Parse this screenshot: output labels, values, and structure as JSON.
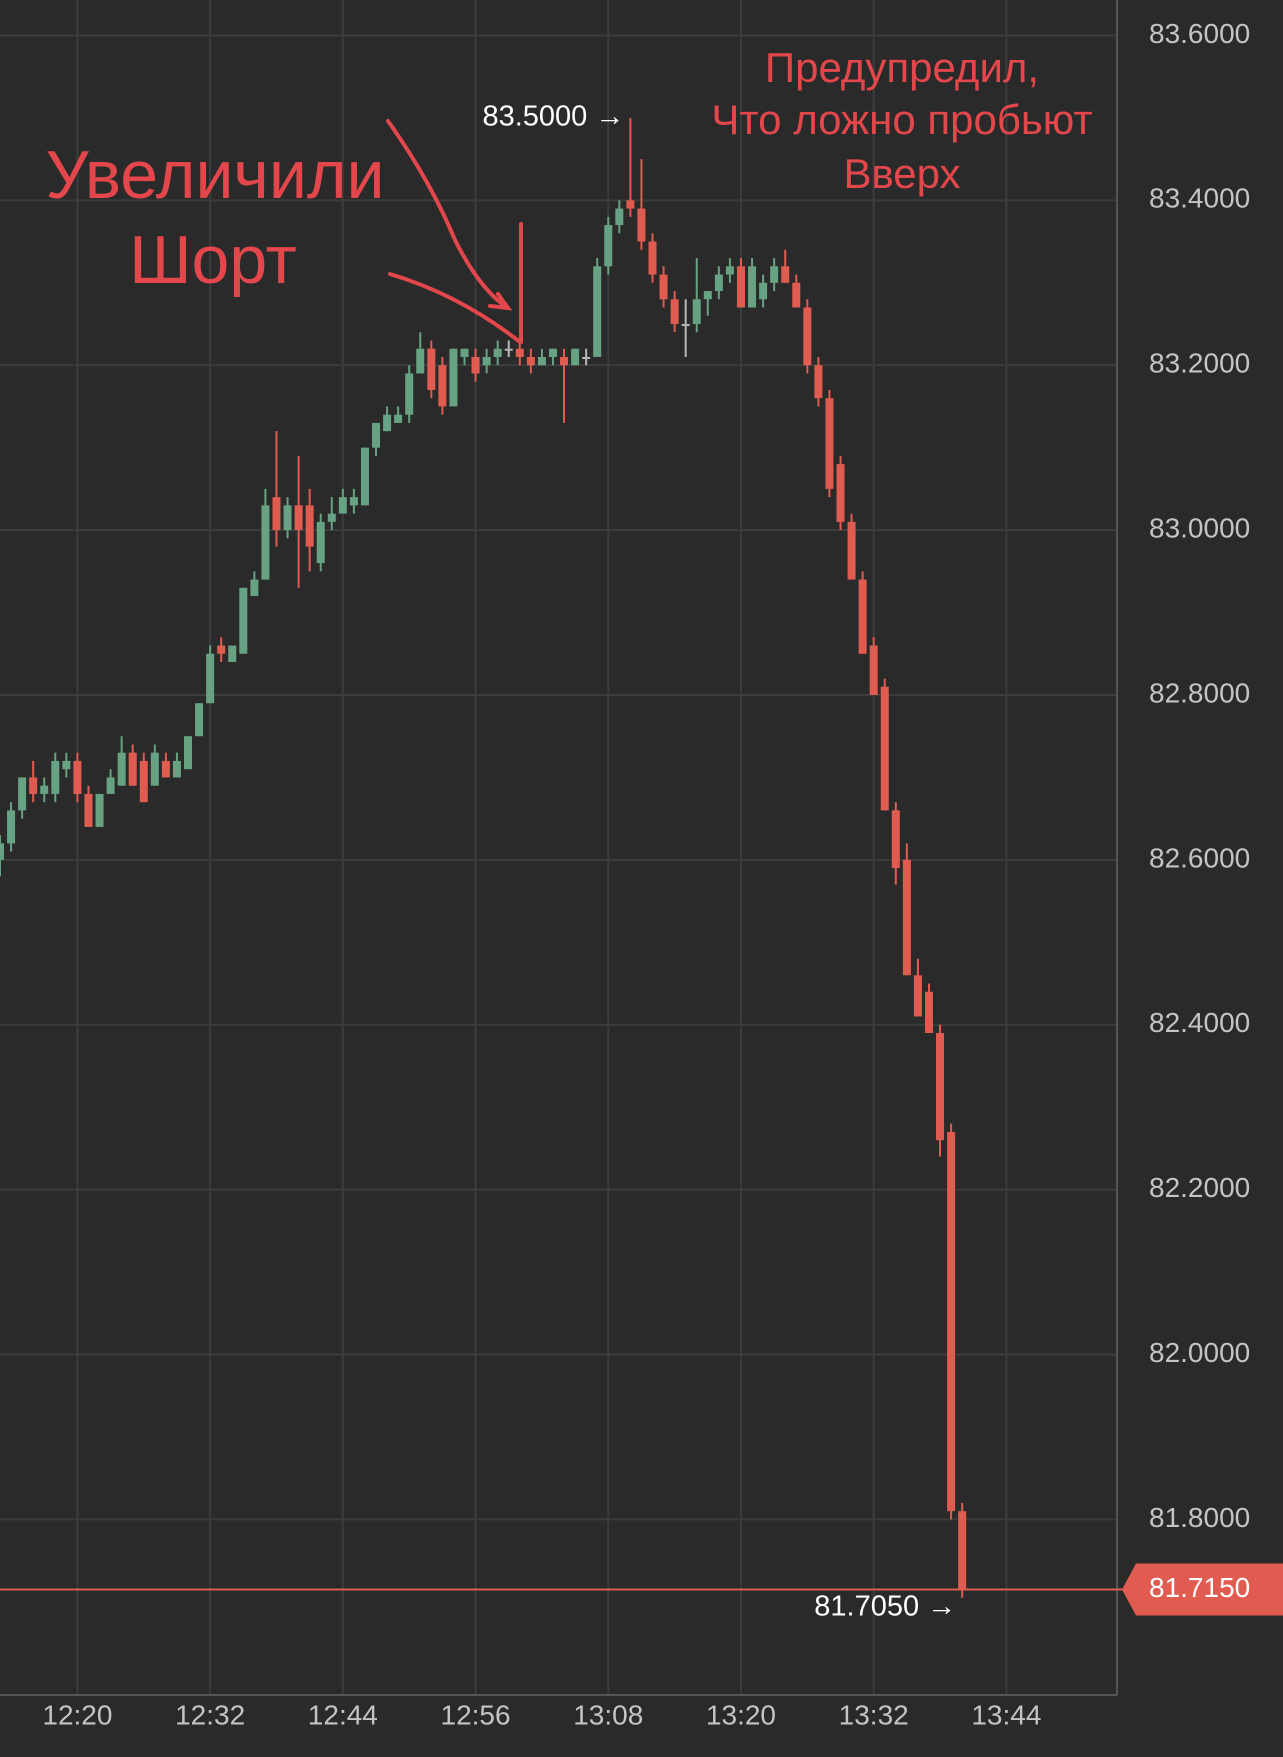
{
  "chart_data": {
    "type": "candlestick",
    "xlim": [
      "12:13",
      "13:54"
    ],
    "xticks": [
      "12:20",
      "12:32",
      "12:44",
      "12:56",
      "13:08",
      "13:20",
      "13:32",
      "13:44"
    ],
    "ylim": [
      81.587,
      83.643
    ],
    "yticks": [
      {
        "value": 81.8,
        "label": "81.8000"
      },
      {
        "value": 82.0,
        "label": "82.0000"
      },
      {
        "value": 82.2,
        "label": "82.2000"
      },
      {
        "value": 82.4,
        "label": "82.4000"
      },
      {
        "value": 82.6,
        "label": "82.6000"
      },
      {
        "value": 82.8,
        "label": "82.8000"
      },
      {
        "value": 83.0,
        "label": "83.0000"
      },
      {
        "value": 83.2,
        "label": "83.2000"
      },
      {
        "value": 83.4,
        "label": "83.4000"
      },
      {
        "value": 83.6,
        "label": "83.6000"
      }
    ],
    "grid": true,
    "up_color": "#67a382",
    "down_color": "#e05c50",
    "doji_color": "#b8b8b8",
    "x": [
      "12:13",
      "12:14",
      "12:15",
      "12:16",
      "12:17",
      "12:18",
      "12:19",
      "12:20",
      "12:21",
      "12:22",
      "12:23",
      "12:24",
      "12:25",
      "12:26",
      "12:27",
      "12:28",
      "12:29",
      "12:30",
      "12:31",
      "12:32",
      "12:33",
      "12:34",
      "12:35",
      "12:36",
      "12:37",
      "12:38",
      "12:39",
      "12:40",
      "12:41",
      "12:42",
      "12:43",
      "12:44",
      "12:45",
      "12:46",
      "12:47",
      "12:48",
      "12:49",
      "12:50",
      "12:51",
      "12:52",
      "12:53",
      "12:54",
      "12:55",
      "12:56",
      "12:57",
      "12:58",
      "12:59",
      "13:00",
      "13:01",
      "13:02",
      "13:03",
      "13:04",
      "13:05",
      "13:06",
      "13:07",
      "13:08",
      "13:09",
      "13:10",
      "13:11",
      "13:12",
      "13:13",
      "13:14",
      "13:15",
      "13:16",
      "13:17",
      "13:18",
      "13:19",
      "13:20",
      "13:21",
      "13:22",
      "13:23",
      "13:24",
      "13:25",
      "13:26",
      "13:27",
      "13:28",
      "13:29",
      "13:30",
      "13:31",
      "13:32",
      "13:33",
      "13:34",
      "13:35",
      "13:36",
      "13:37",
      "13:38",
      "13:39",
      "13:40"
    ],
    "ohlc": [
      [
        82.6,
        82.63,
        82.58,
        82.62
      ],
      [
        82.62,
        82.67,
        82.61,
        82.66
      ],
      [
        82.66,
        82.7,
        82.65,
        82.7
      ],
      [
        82.7,
        82.72,
        82.67,
        82.68
      ],
      [
        82.68,
        82.7,
        82.67,
        82.69
      ],
      [
        82.68,
        82.73,
        82.67,
        82.72
      ],
      [
        82.71,
        82.73,
        82.7,
        82.72
      ],
      [
        82.72,
        82.73,
        82.67,
        82.68
      ],
      [
        82.68,
        82.69,
        82.64,
        82.64
      ],
      [
        82.64,
        82.68,
        82.64,
        82.68
      ],
      [
        82.68,
        82.71,
        82.68,
        82.7
      ],
      [
        82.69,
        82.75,
        82.69,
        82.73
      ],
      [
        82.73,
        82.74,
        82.69,
        82.69
      ],
      [
        82.72,
        82.73,
        82.67,
        82.67
      ],
      [
        82.69,
        82.74,
        82.69,
        82.73
      ],
      [
        82.72,
        82.73,
        82.7,
        82.7
      ],
      [
        82.7,
        82.73,
        82.7,
        82.72
      ],
      [
        82.71,
        82.75,
        82.71,
        82.75
      ],
      [
        82.75,
        82.79,
        82.75,
        82.79
      ],
      [
        82.79,
        82.86,
        82.79,
        82.85
      ],
      [
        82.86,
        82.87,
        82.84,
        82.85
      ],
      [
        82.84,
        82.86,
        82.84,
        82.86
      ],
      [
        82.85,
        82.93,
        82.85,
        82.93
      ],
      [
        82.92,
        82.95,
        82.92,
        82.94
      ],
      [
        82.94,
        83.05,
        82.94,
        83.03
      ],
      [
        83.04,
        83.12,
        82.98,
        83.0
      ],
      [
        83.0,
        83.04,
        82.99,
        83.03
      ],
      [
        83.03,
        83.09,
        82.93,
        83.0
      ],
      [
        83.03,
        83.05,
        82.95,
        82.98
      ],
      [
        82.96,
        83.02,
        82.95,
        83.01
      ],
      [
        83.01,
        83.04,
        83.0,
        83.02
      ],
      [
        83.02,
        83.05,
        83.02,
        83.04
      ],
      [
        83.03,
        83.05,
        83.02,
        83.04
      ],
      [
        83.03,
        83.1,
        83.03,
        83.1
      ],
      [
        83.1,
        83.13,
        83.09,
        83.13
      ],
      [
        83.12,
        83.15,
        83.12,
        83.14
      ],
      [
        83.13,
        83.15,
        83.13,
        83.14
      ],
      [
        83.14,
        83.2,
        83.13,
        83.19
      ],
      [
        83.19,
        83.24,
        83.19,
        83.22
      ],
      [
        83.22,
        83.23,
        83.16,
        83.17
      ],
      [
        83.2,
        83.21,
        83.14,
        83.15
      ],
      [
        83.15,
        83.22,
        83.15,
        83.22
      ],
      [
        83.21,
        83.22,
        83.2,
        83.22
      ],
      [
        83.21,
        83.22,
        83.18,
        83.19
      ],
      [
        83.2,
        83.22,
        83.19,
        83.21
      ],
      [
        83.21,
        83.23,
        83.2,
        83.22
      ],
      [
        83.22,
        83.23,
        83.21,
        83.22
      ],
      [
        83.22,
        83.23,
        83.2,
        83.21
      ],
      [
        83.21,
        83.22,
        83.19,
        83.2
      ],
      [
        83.2,
        83.22,
        83.2,
        83.21
      ],
      [
        83.21,
        83.22,
        83.2,
        83.22
      ],
      [
        83.21,
        83.22,
        83.13,
        83.2
      ],
      [
        83.2,
        83.22,
        83.2,
        83.22
      ],
      [
        83.21,
        83.22,
        83.2,
        83.21
      ],
      [
        83.21,
        83.33,
        83.21,
        83.32
      ],
      [
        83.32,
        83.38,
        83.31,
        83.37
      ],
      [
        83.37,
        83.4,
        83.36,
        83.39
      ],
      [
        83.4,
        83.5,
        83.38,
        83.39
      ],
      [
        83.39,
        83.45,
        83.34,
        83.35
      ],
      [
        83.35,
        83.36,
        83.3,
        83.31
      ],
      [
        83.31,
        83.32,
        83.27,
        83.28
      ],
      [
        83.28,
        83.29,
        83.24,
        83.25
      ],
      [
        83.25,
        83.28,
        83.21,
        83.25
      ],
      [
        83.25,
        83.33,
        83.24,
        83.28
      ],
      [
        83.28,
        83.29,
        83.26,
        83.29
      ],
      [
        83.29,
        83.32,
        83.28,
        83.31
      ],
      [
        83.31,
        83.33,
        83.3,
        83.32
      ],
      [
        83.32,
        83.33,
        83.27,
        83.27
      ],
      [
        83.27,
        83.33,
        83.27,
        83.32
      ],
      [
        83.28,
        83.31,
        83.27,
        83.3
      ],
      [
        83.3,
        83.33,
        83.29,
        83.32
      ],
      [
        83.32,
        83.34,
        83.3,
        83.3
      ],
      [
        83.3,
        83.31,
        83.27,
        83.27
      ],
      [
        83.27,
        83.28,
        83.19,
        83.2
      ],
      [
        83.2,
        83.21,
        83.15,
        83.16
      ],
      [
        83.16,
        83.17,
        83.04,
        83.05
      ],
      [
        83.08,
        83.09,
        83.0,
        83.01
      ],
      [
        83.01,
        83.02,
        82.94,
        82.94
      ],
      [
        82.94,
        82.95,
        82.85,
        82.85
      ],
      [
        82.86,
        82.87,
        82.8,
        82.8
      ],
      [
        82.81,
        82.82,
        82.66,
        82.66
      ],
      [
        82.66,
        82.67,
        82.57,
        82.59
      ],
      [
        82.6,
        82.62,
        82.46,
        82.46
      ],
      [
        82.46,
        82.48,
        82.41,
        82.41
      ],
      [
        82.44,
        82.45,
        82.39,
        82.39
      ],
      [
        82.39,
        82.4,
        82.24,
        82.26
      ],
      [
        82.27,
        82.28,
        81.8,
        81.81
      ],
      [
        81.81,
        81.82,
        81.705,
        81.715
      ]
    ],
    "high_marker": {
      "value": 83.5,
      "label": "83.5000 →"
    },
    "low_marker": {
      "value": 81.705,
      "label": "81.7050 →"
    },
    "last_price": {
      "value": 81.715,
      "label": "81.7150"
    },
    "annotations": [
      "Увеличили",
      "Шорт",
      "Предупредил,",
      "Что ложно пробьют",
      "Вверх"
    ]
  }
}
